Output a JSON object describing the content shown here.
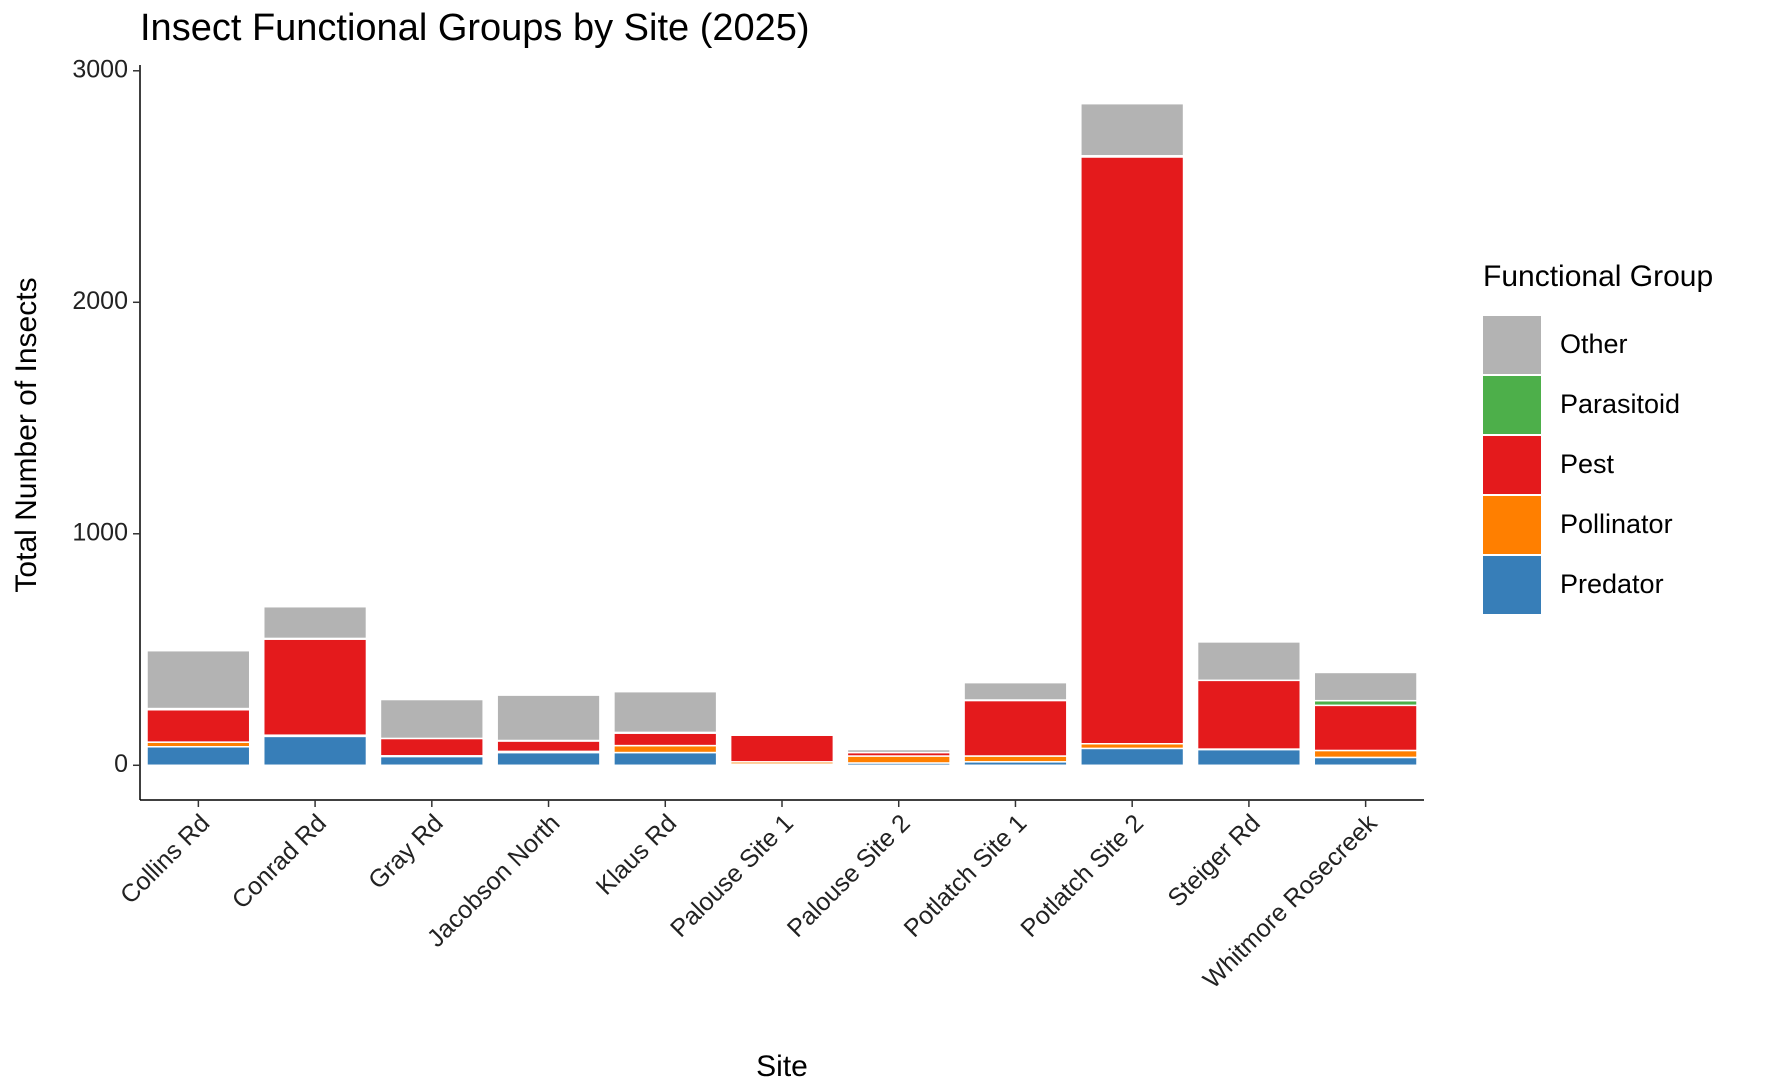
{
  "chart_data": {
    "type": "stacked_bar",
    "title": "Insect Functional Groups by Site (2025)",
    "x_label": "Site",
    "y_label": "Total Number of Insects",
    "legend_title": "Functional Group",
    "legend_position": "right",
    "categories": [
      "Collins Rd",
      "Conrad Rd",
      "Gray Rd",
      "Jacobson North",
      "Klaus Rd",
      "Palouse Site 1",
      "Palouse Site 2",
      "Potlatch Site 1",
      "Potlatch Site 2",
      "Steiger Rd",
      "Whitmore Rosecreek"
    ],
    "series": [
      {
        "name": "Predator",
        "color": "#377eb8",
        "values": [
          80,
          125,
          38,
          55,
          55,
          5,
          10,
          15,
          73,
          68,
          34
        ]
      },
      {
        "name": "Pollinator",
        "color": "#ff7f00",
        "values": [
          20,
          5,
          3,
          5,
          30,
          10,
          30,
          25,
          20,
          2,
          30
        ]
      },
      {
        "name": "Pest",
        "color": "#e41a1c",
        "values": [
          140,
          415,
          75,
          45,
          54,
          115,
          15,
          240,
          2535,
          297,
          195
        ]
      },
      {
        "name": "Parasitoid",
        "color": "#4daf4a",
        "values": [
          5,
          3,
          0,
          2,
          3,
          0,
          0,
          2,
          5,
          0,
          20
        ]
      },
      {
        "name": "Other",
        "color": "#b3b3b3",
        "values": [
          250,
          137,
          168,
          196,
          176,
          2,
          13,
          75,
          225,
          166,
          122
        ]
      }
    ],
    "ylim": [
      -150,
      3025
    ],
    "yticks": [
      0,
      1000,
      2000,
      3000
    ],
    "grid": false
  }
}
